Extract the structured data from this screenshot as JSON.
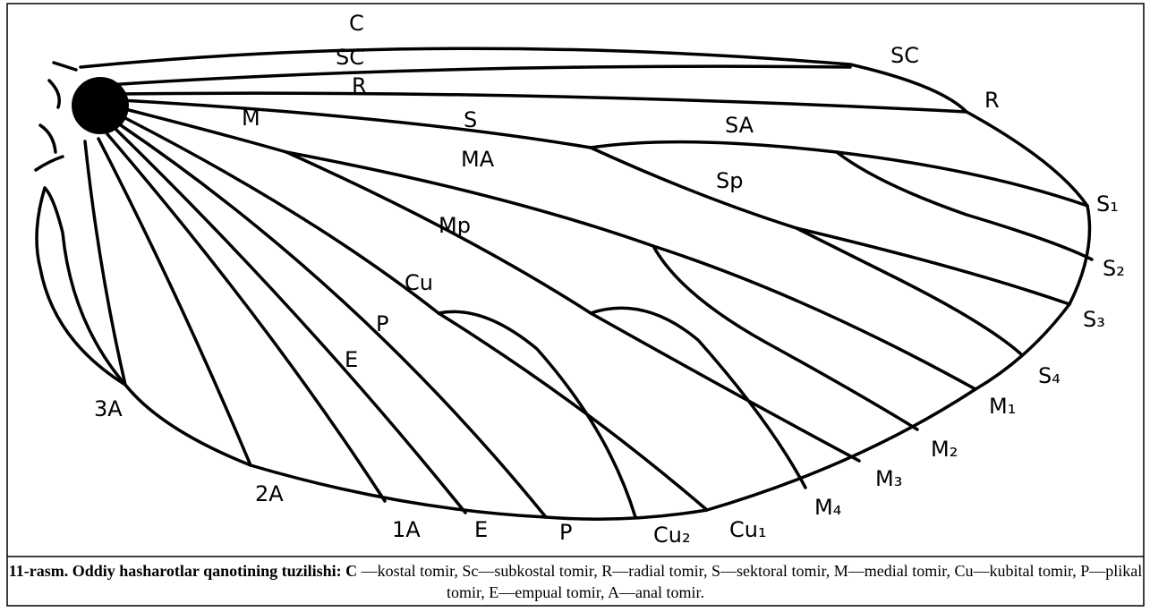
{
  "labels": [
    "C",
    "SC",
    "R",
    "SC",
    "R",
    "M",
    "S",
    "SA",
    "MA",
    "Sp",
    "Mp",
    "Cu",
    "P",
    "E",
    "S₁",
    "S₂",
    "S₃",
    "S₄",
    "M₁",
    "M₂",
    "M₃",
    "M₄",
    "Cu₁",
    "Cu₂",
    "P",
    "E",
    "1A",
    "2A",
    "3A"
  ],
  "caption": {
    "title": "11-rasm. Oddiy hasharotlar qanotining tuzilishi",
    "first": ": C",
    "text": " —kostal tomir, Sc—subkostal tomir, R—radial tomir, S—sektoral tomir,  M—medial tomir,  Cu—kubital tomir, P—plikal tomir, E—empual tomir,  A—anal tomir."
  }
}
